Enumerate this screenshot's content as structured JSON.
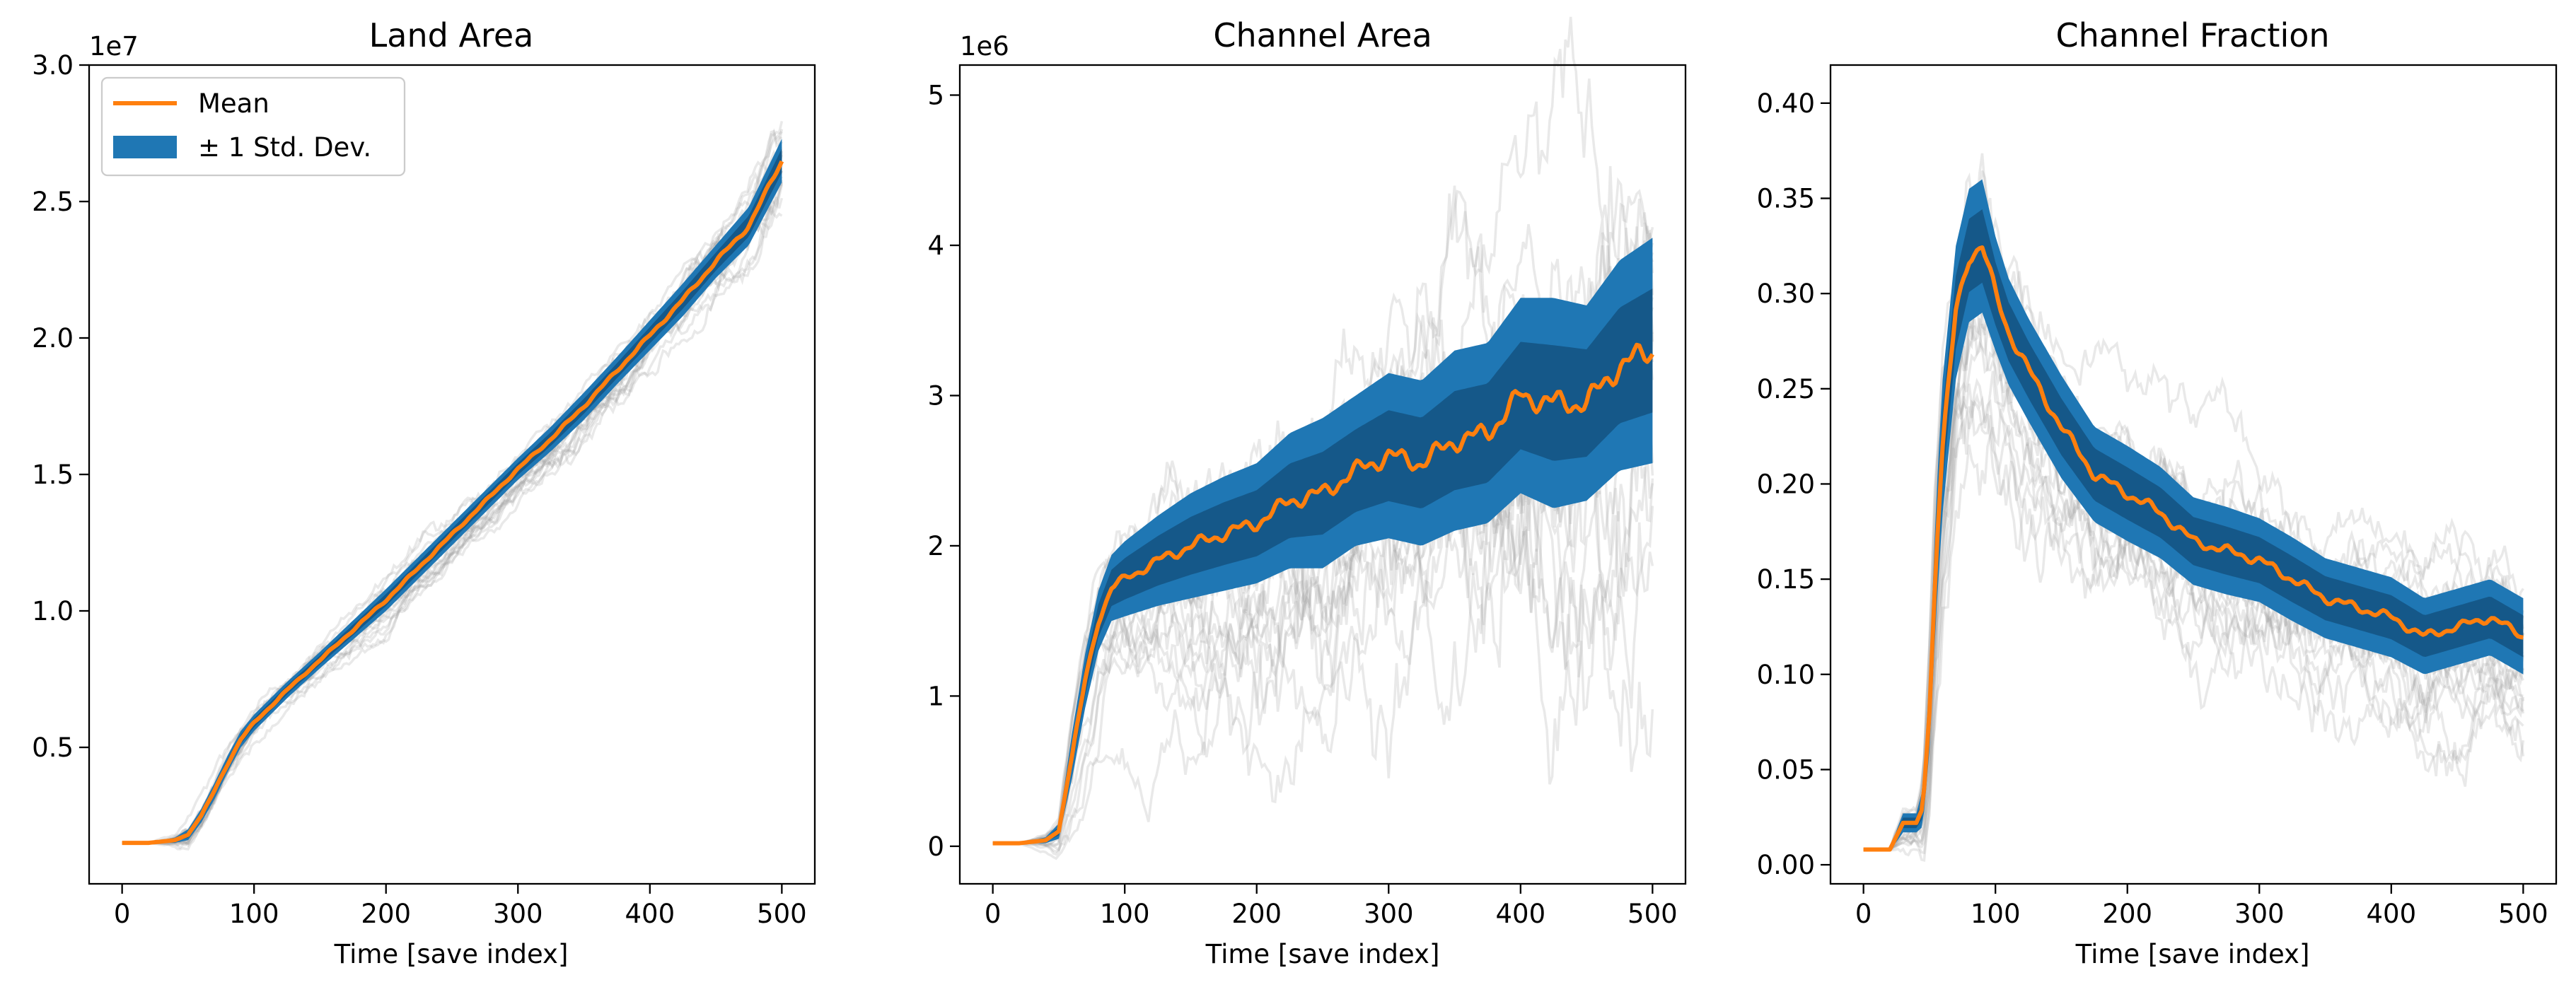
{
  "figure": {
    "n_panels": 3
  },
  "colors": {
    "mean": "#ff7f0e",
    "band": "#1f77b4",
    "band_dark": "#0c3f66",
    "runs": "#9a9a9a"
  },
  "legend": {
    "mean_label": "Mean",
    "band_label": "± 1 Std. Dev.",
    "location": "upper-left of first panel"
  },
  "chart_data": [
    {
      "type": "line",
      "title": "Land Area",
      "xlabel": "Time [save index]",
      "ylabel": "",
      "offset_label": "1e7",
      "xlim": [
        -25,
        525
      ],
      "ylim": [
        0.0,
        3.0
      ],
      "xticks": [
        0,
        100,
        200,
        300,
        400,
        500
      ],
      "xtick_labels": [
        "0",
        "100",
        "200",
        "300",
        "400",
        "500"
      ],
      "yticks": [
        0.5,
        1.0,
        1.5,
        2.0,
        2.5,
        3.0
      ],
      "ytick_labels": [
        "0.5",
        "1.0",
        "1.5",
        "2.0",
        "2.5",
        "3.0"
      ],
      "background_runs": 20,
      "series": [
        {
          "name": "Mean",
          "x": [
            0,
            20,
            30,
            40,
            50,
            60,
            70,
            80,
            90,
            100,
            125,
            150,
            175,
            200,
            225,
            250,
            275,
            300,
            325,
            350,
            375,
            400,
            425,
            450,
            475,
            500
          ],
          "y": [
            0.15,
            0.15,
            0.155,
            0.16,
            0.18,
            0.25,
            0.34,
            0.44,
            0.53,
            0.59,
            0.71,
            0.82,
            0.93,
            1.04,
            1.16,
            1.28,
            1.4,
            1.52,
            1.63,
            1.75,
            1.88,
            2.01,
            2.14,
            2.28,
            2.41,
            2.65
          ]
        },
        {
          "name": "± 1 Std. Dev.",
          "x": [
            0,
            20,
            30,
            40,
            50,
            60,
            70,
            80,
            90,
            100,
            125,
            150,
            175,
            200,
            225,
            250,
            275,
            300,
            325,
            350,
            375,
            400,
            425,
            450,
            475,
            500
          ],
          "std": [
            0.0,
            0.0,
            0.005,
            0.01,
            0.02,
            0.025,
            0.03,
            0.03,
            0.03,
            0.03,
            0.03,
            0.03,
            0.035,
            0.04,
            0.04,
            0.04,
            0.04,
            0.04,
            0.045,
            0.05,
            0.05,
            0.055,
            0.06,
            0.06,
            0.07,
            0.08
          ]
        }
      ]
    },
    {
      "type": "line",
      "title": "Channel Area",
      "xlabel": "Time [save index]",
      "ylabel": "",
      "offset_label": "1e6",
      "xlim": [
        -25,
        525
      ],
      "ylim": [
        -0.25,
        5.2
      ],
      "xticks": [
        0,
        100,
        200,
        300,
        400,
        500
      ],
      "xtick_labels": [
        "0",
        "100",
        "200",
        "300",
        "400",
        "500"
      ],
      "yticks": [
        0,
        1,
        2,
        3,
        4,
        5
      ],
      "ytick_labels": [
        "0",
        "1",
        "2",
        "3",
        "4",
        "5"
      ],
      "background_runs": 20,
      "series": [
        {
          "name": "Mean",
          "x": [
            0,
            20,
            30,
            40,
            50,
            60,
            70,
            80,
            90,
            100,
            125,
            150,
            175,
            200,
            225,
            250,
            275,
            300,
            325,
            350,
            375,
            400,
            425,
            450,
            475,
            500
          ],
          "y": [
            0.02,
            0.02,
            0.03,
            0.04,
            0.1,
            0.6,
            1.1,
            1.5,
            1.72,
            1.78,
            1.9,
            2.0,
            2.08,
            2.15,
            2.3,
            2.35,
            2.5,
            2.6,
            2.55,
            2.7,
            2.75,
            3.0,
            2.95,
            2.95,
            3.2,
            3.3
          ]
        },
        {
          "name": "± 1 Std. Dev.",
          "x": [
            0,
            20,
            30,
            40,
            50,
            60,
            70,
            80,
            90,
            100,
            125,
            150,
            175,
            200,
            225,
            250,
            275,
            300,
            325,
            350,
            375,
            400,
            425,
            450,
            475,
            500
          ],
          "std": [
            0.0,
            0.0,
            0.01,
            0.02,
            0.05,
            0.15,
            0.18,
            0.2,
            0.22,
            0.25,
            0.3,
            0.35,
            0.38,
            0.4,
            0.45,
            0.5,
            0.5,
            0.55,
            0.55,
            0.6,
            0.6,
            0.65,
            0.7,
            0.65,
            0.7,
            0.75
          ]
        }
      ]
    },
    {
      "type": "line",
      "title": "Channel Fraction",
      "xlabel": "Time [save index]",
      "ylabel": "",
      "offset_label": "",
      "xlim": [
        -25,
        525
      ],
      "ylim": [
        -0.01,
        0.42
      ],
      "xticks": [
        0,
        100,
        200,
        300,
        400,
        500
      ],
      "xtick_labels": [
        "0",
        "100",
        "200",
        "300",
        "400",
        "500"
      ],
      "yticks": [
        0.0,
        0.05,
        0.1,
        0.15,
        0.2,
        0.25,
        0.3,
        0.35,
        0.4
      ],
      "ytick_labels": [
        "0.00",
        "0.05",
        "0.10",
        "0.15",
        "0.20",
        "0.25",
        "0.30",
        "0.35",
        "0.40"
      ],
      "background_runs": 20,
      "series": [
        {
          "name": "Mean",
          "x": [
            0,
            20,
            25,
            30,
            35,
            40,
            45,
            50,
            55,
            60,
            70,
            80,
            90,
            100,
            110,
            125,
            150,
            175,
            200,
            225,
            250,
            275,
            300,
            325,
            350,
            375,
            400,
            425,
            450,
            475,
            500
          ],
          "y": [
            0.008,
            0.008,
            0.015,
            0.022,
            0.022,
            0.022,
            0.03,
            0.08,
            0.16,
            0.22,
            0.29,
            0.32,
            0.325,
            0.3,
            0.28,
            0.26,
            0.23,
            0.205,
            0.195,
            0.185,
            0.17,
            0.165,
            0.16,
            0.15,
            0.14,
            0.135,
            0.13,
            0.12,
            0.125,
            0.13,
            0.12
          ]
        },
        {
          "name": "± 1 Std. Dev.",
          "x": [
            0,
            20,
            25,
            30,
            35,
            40,
            45,
            50,
            55,
            60,
            70,
            80,
            90,
            100,
            110,
            125,
            150,
            175,
            200,
            225,
            250,
            275,
            300,
            325,
            350,
            375,
            400,
            425,
            450,
            475,
            500
          ],
          "std": [
            0.0,
            0.0,
            0.003,
            0.005,
            0.005,
            0.005,
            0.01,
            0.02,
            0.03,
            0.035,
            0.035,
            0.035,
            0.035,
            0.03,
            0.028,
            0.027,
            0.027,
            0.025,
            0.025,
            0.024,
            0.023,
            0.023,
            0.022,
            0.022,
            0.021,
            0.021,
            0.021,
            0.02,
            0.02,
            0.02,
            0.02
          ]
        }
      ]
    }
  ]
}
